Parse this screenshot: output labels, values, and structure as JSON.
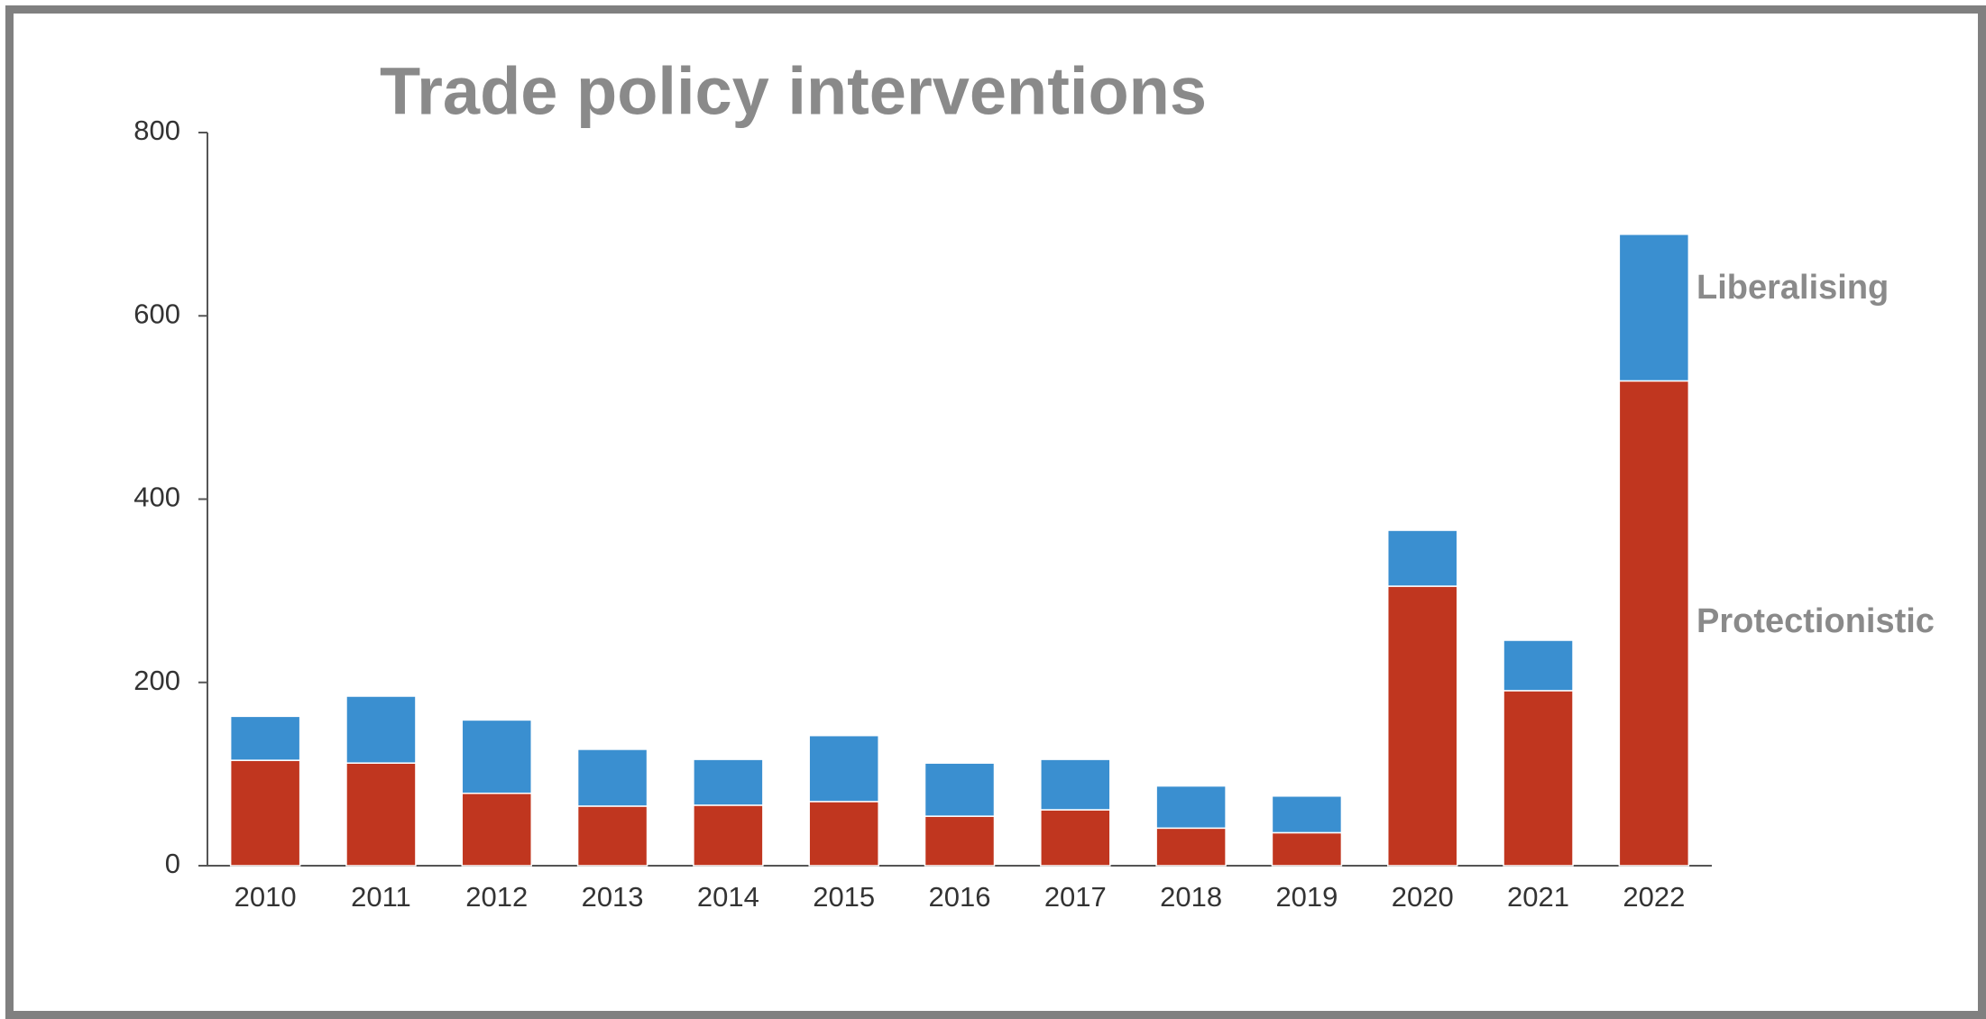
{
  "chart_data": {
    "type": "stacked-bar",
    "title": "Trade policy interventions",
    "categories": [
      "2010",
      "2011",
      "2012",
      "2013",
      "2014",
      "2015",
      "2016",
      "2017",
      "2018",
      "2019",
      "2020",
      "2021",
      "2022"
    ],
    "series": [
      {
        "name": "Protectionistic",
        "color": "#c0361f",
        "values": [
          115,
          112,
          79,
          65,
          66,
          70,
          54,
          61,
          41,
          36,
          305,
          191,
          529
        ]
      },
      {
        "name": "Liberalising",
        "color": "#3a8fd0",
        "values": [
          48,
          73,
          80,
          62,
          50,
          72,
          58,
          55,
          46,
          40,
          61,
          55,
          160
        ]
      }
    ],
    "ylim": [
      0,
      800
    ],
    "yticks": [
      0,
      200,
      400,
      600,
      800
    ],
    "grid": false
  }
}
